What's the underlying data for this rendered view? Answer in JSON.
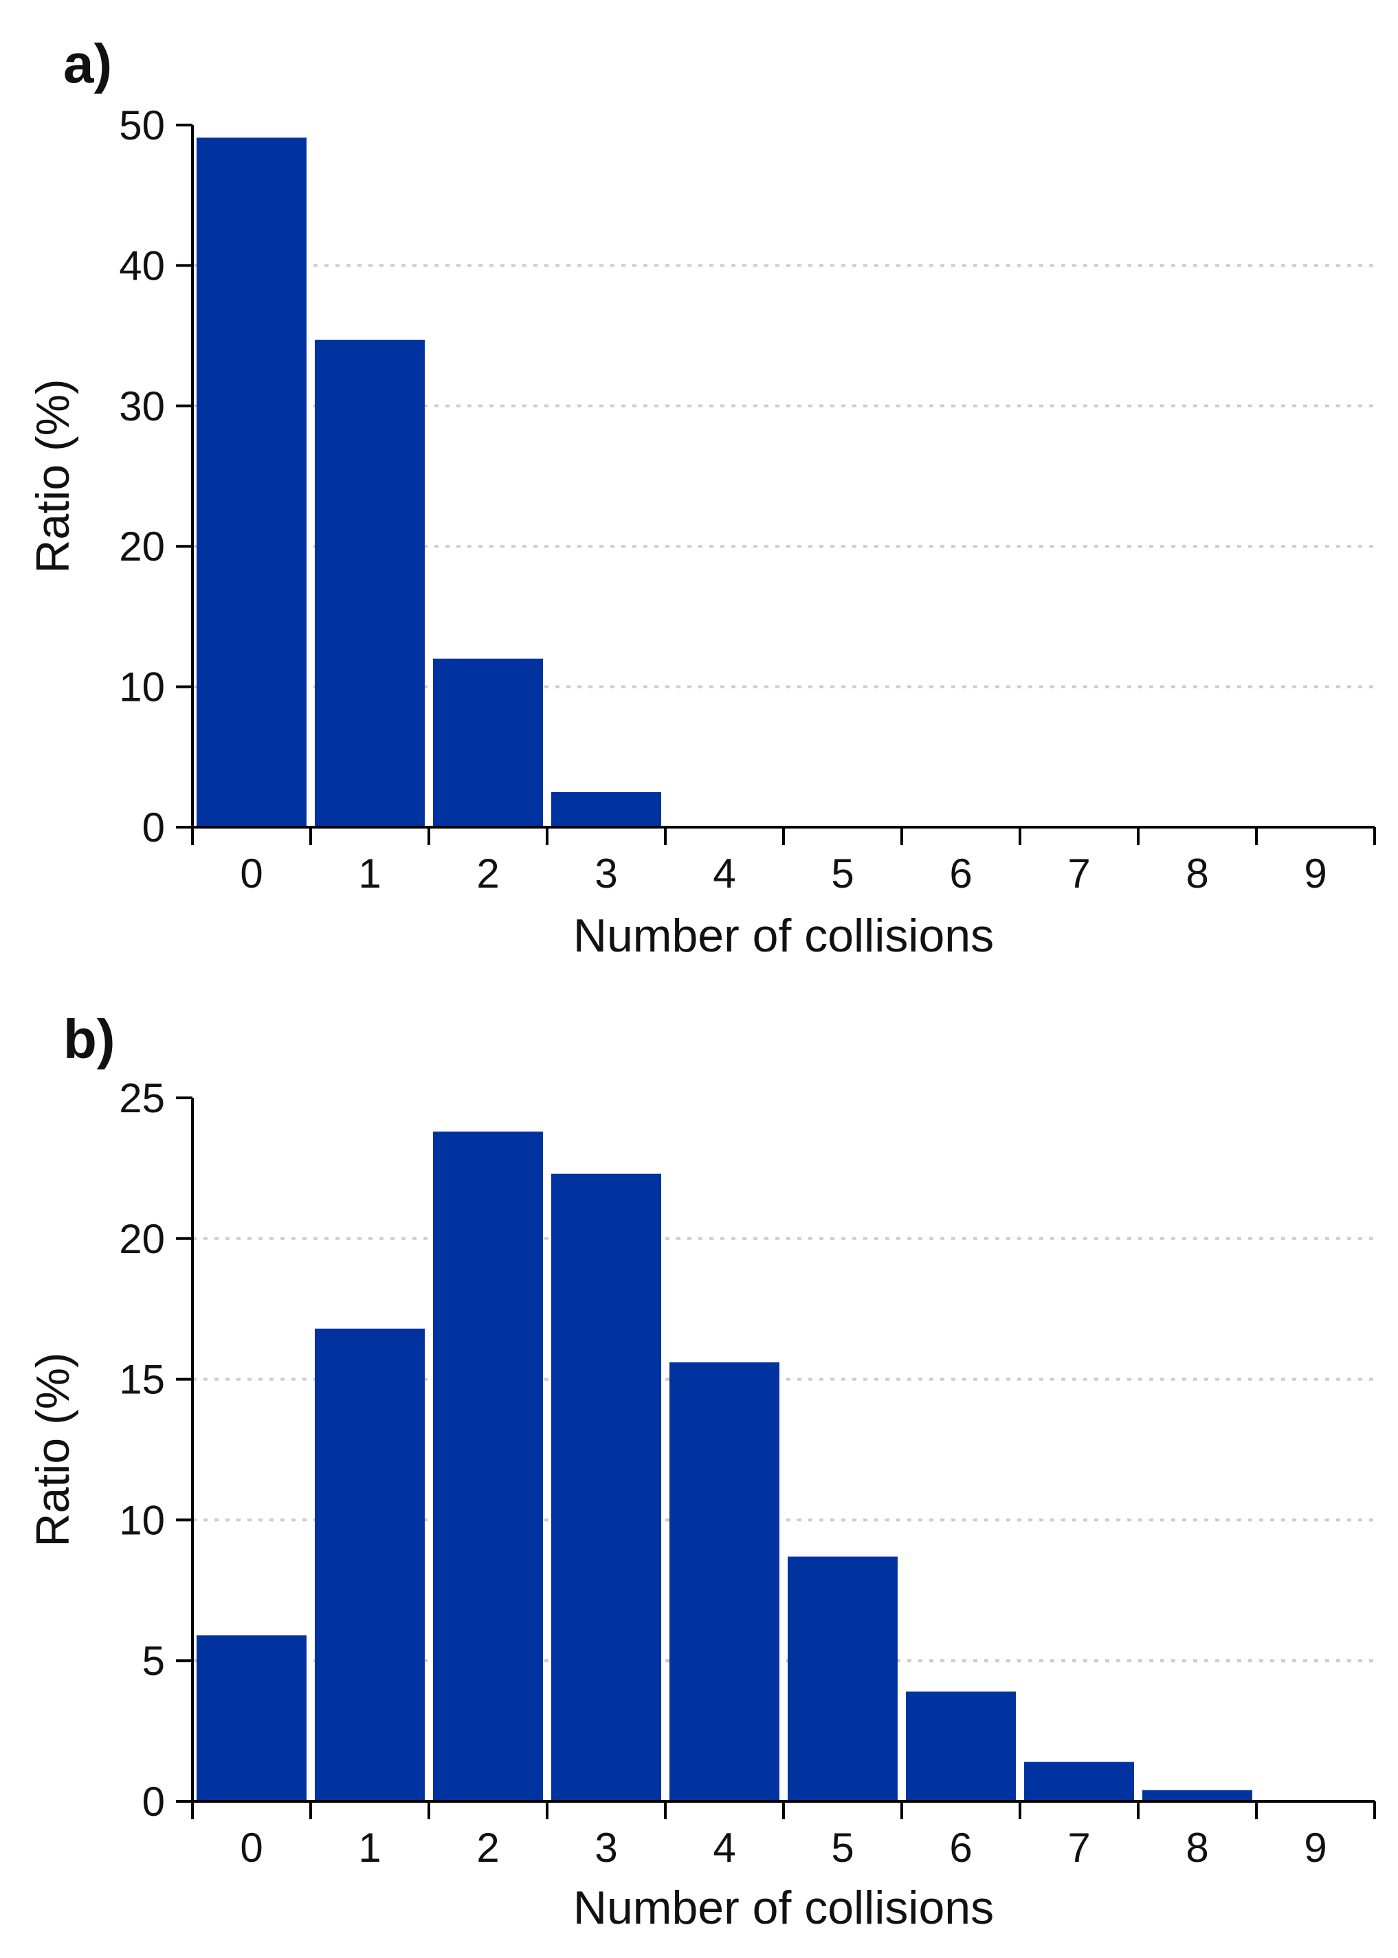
{
  "figure": {
    "bar_color": "#0033a0",
    "grid_color": "#cccccc",
    "axis_color": "#000000"
  },
  "chart_data": [
    {
      "panel_label": "a)",
      "type": "bar",
      "categories": [
        "0",
        "1",
        "2",
        "3",
        "4",
        "5",
        "6",
        "7",
        "8",
        "9"
      ],
      "values": [
        49.1,
        34.7,
        12.0,
        2.5,
        0,
        0,
        0,
        0,
        0,
        0
      ],
      "xlabel": "Number of collisions",
      "ylabel": "Ratio (%)",
      "ylim": [
        0,
        50
      ],
      "yticks": [
        "0",
        "10",
        "20",
        "30",
        "40",
        "50"
      ],
      "grid": "horizontal dotted"
    },
    {
      "panel_label": "b)",
      "type": "bar",
      "categories": [
        "0",
        "1",
        "2",
        "3",
        "4",
        "5",
        "6",
        "7",
        "8",
        "9"
      ],
      "values": [
        5.9,
        16.8,
        23.8,
        22.3,
        15.6,
        8.7,
        3.9,
        1.4,
        0.4,
        0
      ],
      "xlabel": "Number of collisions",
      "ylabel": "Ratio (%)",
      "ylim": [
        0,
        25
      ],
      "yticks": [
        "0",
        "5",
        "10",
        "15",
        "20",
        "25"
      ],
      "grid": "horizontal dotted"
    }
  ]
}
